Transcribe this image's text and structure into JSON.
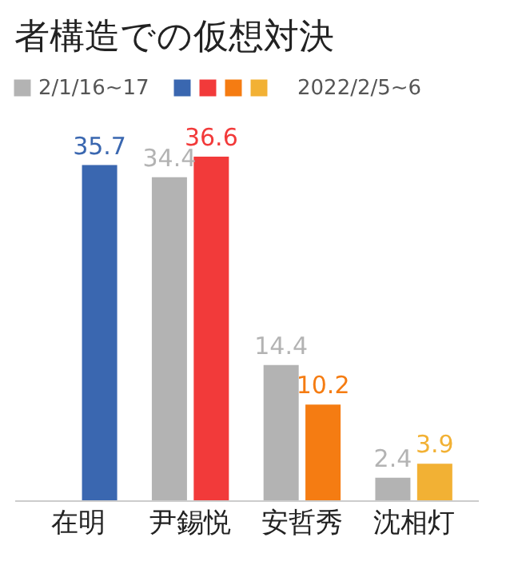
{
  "chart_data": {
    "type": "bar",
    "title": "者構造での仮想対決",
    "categories": [
      "在明",
      "尹錫悦",
      "安哲秀",
      "沈相灯"
    ],
    "series": [
      {
        "name": "2/1/16~17",
        "color": "#b3b3b3",
        "values": [
          null,
          34.4,
          14.4,
          2.4
        ]
      },
      {
        "name": "2022/2/5~6",
        "colors": [
          "#3a67b0",
          "#f23a3a",
          "#f57c12",
          "#f2b134"
        ],
        "values": [
          35.7,
          36.6,
          10.2,
          3.9
        ]
      }
    ],
    "data_labels": true,
    "grid": false,
    "legend": "top"
  }
}
